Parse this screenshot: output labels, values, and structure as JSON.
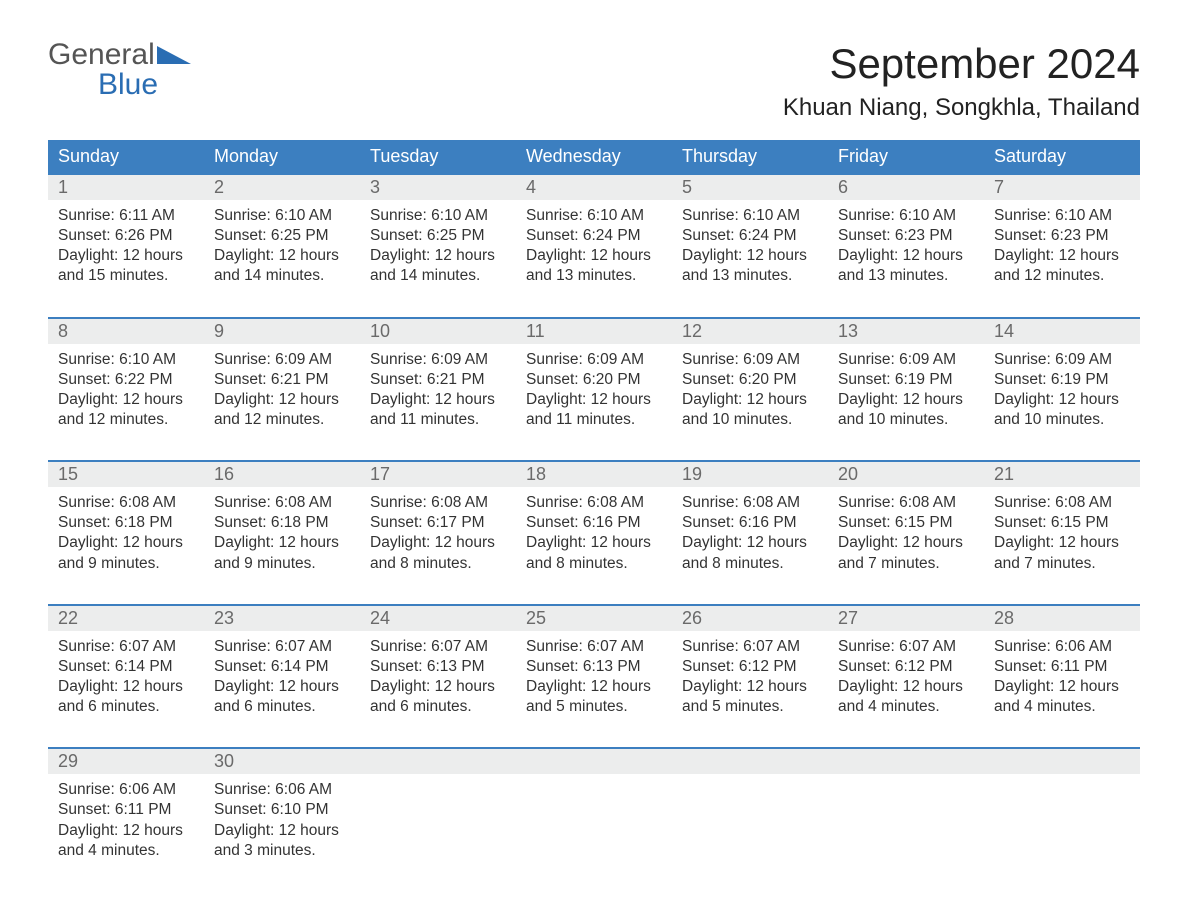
{
  "logo": {
    "word1": "General",
    "word2": "Blue",
    "brand_color": "#2a6db3"
  },
  "title": "September 2024",
  "location": "Khuan Niang, Songkhla, Thailand",
  "colors": {
    "header_bg": "#3c7fc0",
    "header_text": "#ffffff",
    "daynum_bg": "#eceded",
    "daynum_text": "#6a6a6a",
    "body_text": "#333333",
    "week_border": "#3c7fc0",
    "page_bg": "#ffffff"
  },
  "typography": {
    "title_fontsize": 42,
    "location_fontsize": 24,
    "dow_fontsize": 18,
    "daynum_fontsize": 18,
    "body_fontsize": 15.5,
    "font_family": "Arial"
  },
  "days_of_week": [
    "Sunday",
    "Monday",
    "Tuesday",
    "Wednesday",
    "Thursday",
    "Friday",
    "Saturday"
  ],
  "weeks": [
    [
      {
        "n": "1",
        "sunrise": "Sunrise: 6:11 AM",
        "sunset": "Sunset: 6:26 PM",
        "d1": "Daylight: 12 hours",
        "d2": "and 15 minutes."
      },
      {
        "n": "2",
        "sunrise": "Sunrise: 6:10 AM",
        "sunset": "Sunset: 6:25 PM",
        "d1": "Daylight: 12 hours",
        "d2": "and 14 minutes."
      },
      {
        "n": "3",
        "sunrise": "Sunrise: 6:10 AM",
        "sunset": "Sunset: 6:25 PM",
        "d1": "Daylight: 12 hours",
        "d2": "and 14 minutes."
      },
      {
        "n": "4",
        "sunrise": "Sunrise: 6:10 AM",
        "sunset": "Sunset: 6:24 PM",
        "d1": "Daylight: 12 hours",
        "d2": "and 13 minutes."
      },
      {
        "n": "5",
        "sunrise": "Sunrise: 6:10 AM",
        "sunset": "Sunset: 6:24 PM",
        "d1": "Daylight: 12 hours",
        "d2": "and 13 minutes."
      },
      {
        "n": "6",
        "sunrise": "Sunrise: 6:10 AM",
        "sunset": "Sunset: 6:23 PM",
        "d1": "Daylight: 12 hours",
        "d2": "and 13 minutes."
      },
      {
        "n": "7",
        "sunrise": "Sunrise: 6:10 AM",
        "sunset": "Sunset: 6:23 PM",
        "d1": "Daylight: 12 hours",
        "d2": "and 12 minutes."
      }
    ],
    [
      {
        "n": "8",
        "sunrise": "Sunrise: 6:10 AM",
        "sunset": "Sunset: 6:22 PM",
        "d1": "Daylight: 12 hours",
        "d2": "and 12 minutes."
      },
      {
        "n": "9",
        "sunrise": "Sunrise: 6:09 AM",
        "sunset": "Sunset: 6:21 PM",
        "d1": "Daylight: 12 hours",
        "d2": "and 12 minutes."
      },
      {
        "n": "10",
        "sunrise": "Sunrise: 6:09 AM",
        "sunset": "Sunset: 6:21 PM",
        "d1": "Daylight: 12 hours",
        "d2": "and 11 minutes."
      },
      {
        "n": "11",
        "sunrise": "Sunrise: 6:09 AM",
        "sunset": "Sunset: 6:20 PM",
        "d1": "Daylight: 12 hours",
        "d2": "and 11 minutes."
      },
      {
        "n": "12",
        "sunrise": "Sunrise: 6:09 AM",
        "sunset": "Sunset: 6:20 PM",
        "d1": "Daylight: 12 hours",
        "d2": "and 10 minutes."
      },
      {
        "n": "13",
        "sunrise": "Sunrise: 6:09 AM",
        "sunset": "Sunset: 6:19 PM",
        "d1": "Daylight: 12 hours",
        "d2": "and 10 minutes."
      },
      {
        "n": "14",
        "sunrise": "Sunrise: 6:09 AM",
        "sunset": "Sunset: 6:19 PM",
        "d1": "Daylight: 12 hours",
        "d2": "and 10 minutes."
      }
    ],
    [
      {
        "n": "15",
        "sunrise": "Sunrise: 6:08 AM",
        "sunset": "Sunset: 6:18 PM",
        "d1": "Daylight: 12 hours",
        "d2": "and 9 minutes."
      },
      {
        "n": "16",
        "sunrise": "Sunrise: 6:08 AM",
        "sunset": "Sunset: 6:18 PM",
        "d1": "Daylight: 12 hours",
        "d2": "and 9 minutes."
      },
      {
        "n": "17",
        "sunrise": "Sunrise: 6:08 AM",
        "sunset": "Sunset: 6:17 PM",
        "d1": "Daylight: 12 hours",
        "d2": "and 8 minutes."
      },
      {
        "n": "18",
        "sunrise": "Sunrise: 6:08 AM",
        "sunset": "Sunset: 6:16 PM",
        "d1": "Daylight: 12 hours",
        "d2": "and 8 minutes."
      },
      {
        "n": "19",
        "sunrise": "Sunrise: 6:08 AM",
        "sunset": "Sunset: 6:16 PM",
        "d1": "Daylight: 12 hours",
        "d2": "and 8 minutes."
      },
      {
        "n": "20",
        "sunrise": "Sunrise: 6:08 AM",
        "sunset": "Sunset: 6:15 PM",
        "d1": "Daylight: 12 hours",
        "d2": "and 7 minutes."
      },
      {
        "n": "21",
        "sunrise": "Sunrise: 6:08 AM",
        "sunset": "Sunset: 6:15 PM",
        "d1": "Daylight: 12 hours",
        "d2": "and 7 minutes."
      }
    ],
    [
      {
        "n": "22",
        "sunrise": "Sunrise: 6:07 AM",
        "sunset": "Sunset: 6:14 PM",
        "d1": "Daylight: 12 hours",
        "d2": "and 6 minutes."
      },
      {
        "n": "23",
        "sunrise": "Sunrise: 6:07 AM",
        "sunset": "Sunset: 6:14 PM",
        "d1": "Daylight: 12 hours",
        "d2": "and 6 minutes."
      },
      {
        "n": "24",
        "sunrise": "Sunrise: 6:07 AM",
        "sunset": "Sunset: 6:13 PM",
        "d1": "Daylight: 12 hours",
        "d2": "and 6 minutes."
      },
      {
        "n": "25",
        "sunrise": "Sunrise: 6:07 AM",
        "sunset": "Sunset: 6:13 PM",
        "d1": "Daylight: 12 hours",
        "d2": "and 5 minutes."
      },
      {
        "n": "26",
        "sunrise": "Sunrise: 6:07 AM",
        "sunset": "Sunset: 6:12 PM",
        "d1": "Daylight: 12 hours",
        "d2": "and 5 minutes."
      },
      {
        "n": "27",
        "sunrise": "Sunrise: 6:07 AM",
        "sunset": "Sunset: 6:12 PM",
        "d1": "Daylight: 12 hours",
        "d2": "and 4 minutes."
      },
      {
        "n": "28",
        "sunrise": "Sunrise: 6:06 AM",
        "sunset": "Sunset: 6:11 PM",
        "d1": "Daylight: 12 hours",
        "d2": "and 4 minutes."
      }
    ],
    [
      {
        "n": "29",
        "sunrise": "Sunrise: 6:06 AM",
        "sunset": "Sunset: 6:11 PM",
        "d1": "Daylight: 12 hours",
        "d2": "and 4 minutes."
      },
      {
        "n": "30",
        "sunrise": "Sunrise: 6:06 AM",
        "sunset": "Sunset: 6:10 PM",
        "d1": "Daylight: 12 hours",
        "d2": "and 3 minutes."
      },
      {
        "n": "",
        "sunrise": "",
        "sunset": "",
        "d1": "",
        "d2": ""
      },
      {
        "n": "",
        "sunrise": "",
        "sunset": "",
        "d1": "",
        "d2": ""
      },
      {
        "n": "",
        "sunrise": "",
        "sunset": "",
        "d1": "",
        "d2": ""
      },
      {
        "n": "",
        "sunrise": "",
        "sunset": "",
        "d1": "",
        "d2": ""
      },
      {
        "n": "",
        "sunrise": "",
        "sunset": "",
        "d1": "",
        "d2": ""
      }
    ]
  ]
}
